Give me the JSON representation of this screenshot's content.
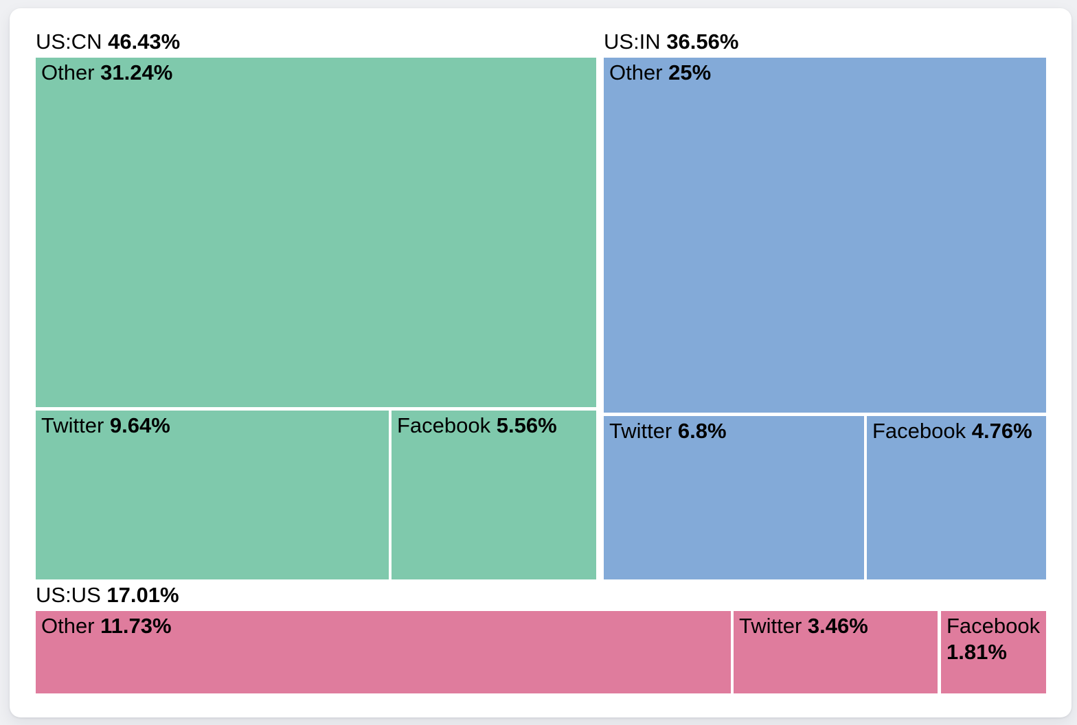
{
  "chart_data": {
    "type": "treemap",
    "unit": "%",
    "legend_position": "none",
    "groups": [
      {
        "label": "US:CN",
        "value": 46.43,
        "value_label": "46.43%",
        "color": "#7fc9ac",
        "children": [
          {
            "label": "Other",
            "value": 31.24,
            "value_label": "31.24%"
          },
          {
            "label": "Twitter",
            "value": 9.64,
            "value_label": "9.64%"
          },
          {
            "label": "Facebook",
            "value": 5.56,
            "value_label": "5.56%"
          }
        ]
      },
      {
        "label": "US:IN",
        "value": 36.56,
        "value_label": "36.56%",
        "color": "#83aad8",
        "children": [
          {
            "label": "Other",
            "value": 25,
            "value_label": "25%"
          },
          {
            "label": "Twitter",
            "value": 6.8,
            "value_label": "6.8%"
          },
          {
            "label": "Facebook",
            "value": 4.76,
            "value_label": "4.76%"
          }
        ]
      },
      {
        "label": "US:US",
        "value": 17.01,
        "value_label": "17.01%",
        "color": "#df7c9d",
        "children": [
          {
            "label": "Other",
            "value": 11.73,
            "value_label": "11.73%"
          },
          {
            "label": "Twitter",
            "value": 3.46,
            "value_label": "3.46%"
          },
          {
            "label": "Facebook",
            "value": 1.81,
            "value_label": "1.81%"
          }
        ]
      }
    ]
  }
}
